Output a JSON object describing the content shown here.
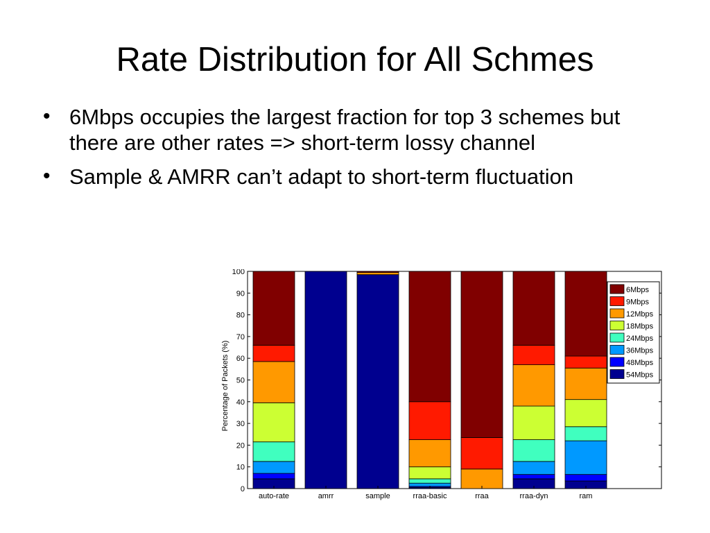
{
  "slide": {
    "title": "Rate Distribution for All Schmes",
    "bullets": [
      "6Mbps occupies the largest fraction for top 3 schemes but there are other rates => short-term lossy channel",
      "Sample & AMRR can’t adapt to short-term fluctuation"
    ]
  },
  "chart_data": {
    "type": "bar",
    "stacked": true,
    "categories": [
      "auto-rate",
      "amrr",
      "sample",
      "rraa-basic",
      "rraa",
      "rraa-dyn",
      "ram"
    ],
    "ylabel": "Percentage of Packets (%)",
    "xlabel": "",
    "ylim": [
      0,
      100
    ],
    "yticks": [
      "0",
      "10",
      "20",
      "30",
      "40",
      "50",
      "60",
      "70",
      "80",
      "90",
      "100"
    ],
    "legend_position": "top-right",
    "series": [
      {
        "name": "54Mbps",
        "color": "#00008f",
        "values": [
          4.5,
          100,
          98.5,
          0.5,
          0,
          4.5,
          3.5
        ]
      },
      {
        "name": "48Mbps",
        "color": "#0000ff",
        "values": [
          2.5,
          0,
          0,
          0.5,
          0,
          2.0,
          3.0
        ]
      },
      {
        "name": "36Mbps",
        "color": "#0099ff",
        "values": [
          5.5,
          0,
          0,
          1.5,
          0,
          6.0,
          15.5
        ]
      },
      {
        "name": "24Mbps",
        "color": "#40ffbf",
        "values": [
          9.0,
          0,
          0,
          2.0,
          0,
          10.0,
          6.5
        ]
      },
      {
        "name": "18Mbps",
        "color": "#ccff33",
        "values": [
          18.0,
          0,
          0,
          5.5,
          0,
          15.5,
          12.5
        ]
      },
      {
        "name": "12Mbps",
        "color": "#ff9900",
        "values": [
          19.0,
          0,
          1.0,
          12.5,
          9.0,
          19.0,
          14.5
        ]
      },
      {
        "name": "9Mbps",
        "color": "#ff1a00",
        "values": [
          7.5,
          0,
          0,
          17.5,
          14.5,
          9.0,
          5.5
        ]
      },
      {
        "name": "6Mbps",
        "color": "#800000",
        "values": [
          34.0,
          0,
          0.5,
          60.0,
          76.5,
          34.0,
          39.0
        ]
      }
    ],
    "legend_order": [
      "6Mbps",
      "9Mbps",
      "12Mbps",
      "18Mbps",
      "24Mbps",
      "36Mbps",
      "48Mbps",
      "54Mbps"
    ]
  }
}
